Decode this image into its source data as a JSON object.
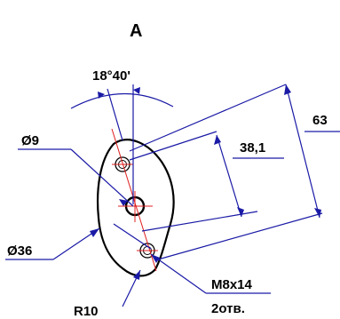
{
  "view_label": "А",
  "dimensions": {
    "angle": "18°40'",
    "hole_small_dia": "Ø9",
    "center_distance_short": "38,1",
    "center_distance_long": "63",
    "outer_dia": "Ø36",
    "radius": "R10",
    "thread": "M8x14",
    "holes_count": "2отв."
  },
  "colors": {
    "leader_lines": "#1a1aa6",
    "axis_lines": "#e02020",
    "outline": "#000000"
  }
}
